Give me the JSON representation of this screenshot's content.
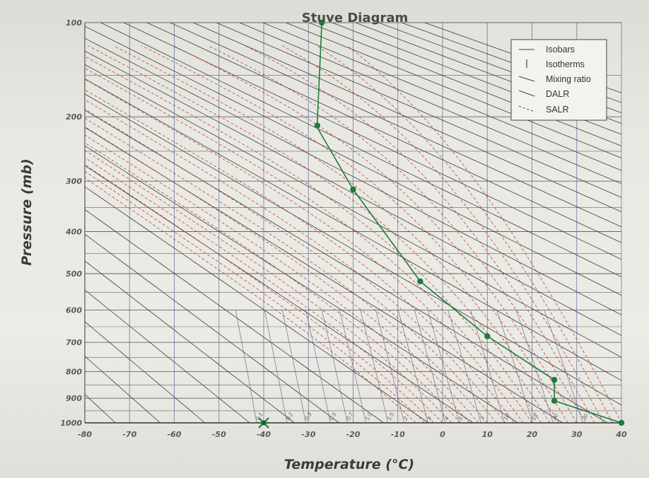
{
  "chart_data": {
    "type": "line",
    "title": "Stuve Diagram",
    "xlabel": "Temperature (°C)",
    "ylabel": "Pressure (mb)",
    "xlim": [
      -80,
      40
    ],
    "ylim": [
      1000,
      100
    ],
    "x_ticks": [
      "-80",
      "-70",
      "-60",
      "-50",
      "-40",
      "-30",
      "-20",
      "-10",
      "0",
      "10",
      "20",
      "30",
      "40"
    ],
    "y_ticks": [
      "100",
      "200",
      "300",
      "400",
      "500",
      "600",
      "700",
      "800",
      "900",
      "1000"
    ],
    "legend": {
      "position": "top-right",
      "entries": [
        "Isobars",
        "Isotherms",
        "Mixing ratio",
        "DALR",
        "SALR"
      ]
    },
    "mixing_ratio_labels": [
      "0.1",
      "0.2",
      "0.3",
      "0.5",
      "0.7",
      "1.0",
      "1.5",
      "2",
      "3",
      "4",
      "5",
      "7",
      "10",
      "15",
      "20",
      "30"
    ],
    "colors": {
      "isobars": "#666666",
      "isotherms": "#5a6f9a",
      "mixing_ratio": "#7a6f90",
      "dalr": "#3c3c3c",
      "salr": "#c0392b",
      "sounding": "#1f7a3c"
    },
    "series": [
      {
        "name": "",
        "points": [
          {
            "t": 40,
            "p": 1000
          },
          {
            "t": 25,
            "p": 910
          },
          {
            "t": 25,
            "p": 830
          },
          {
            "t": 10,
            "p": 680
          },
          {
            "t": -5,
            "p": 520
          },
          {
            "t": -20,
            "p": 315
          },
          {
            "t": -28,
            "p": 215
          },
          {
            "t": -28,
            "p": 205
          },
          {
            "t": -27,
            "p": 100
          }
        ],
        "markers": [
          {
            "t": 40,
            "p": 1000
          },
          {
            "t": 25,
            "p": 910
          },
          {
            "t": 25,
            "p": 830
          },
          {
            "t": 10,
            "p": 680
          },
          {
            "t": -5,
            "p": 520
          },
          {
            "t": -20,
            "p": 315
          },
          {
            "t": -28,
            "p": 212
          },
          {
            "t": -27,
            "p": 100
          }
        ]
      },
      {
        "name": "",
        "points": [
          {
            "t": -40,
            "p": 1000
          }
        ],
        "marker": "star"
      }
    ]
  }
}
